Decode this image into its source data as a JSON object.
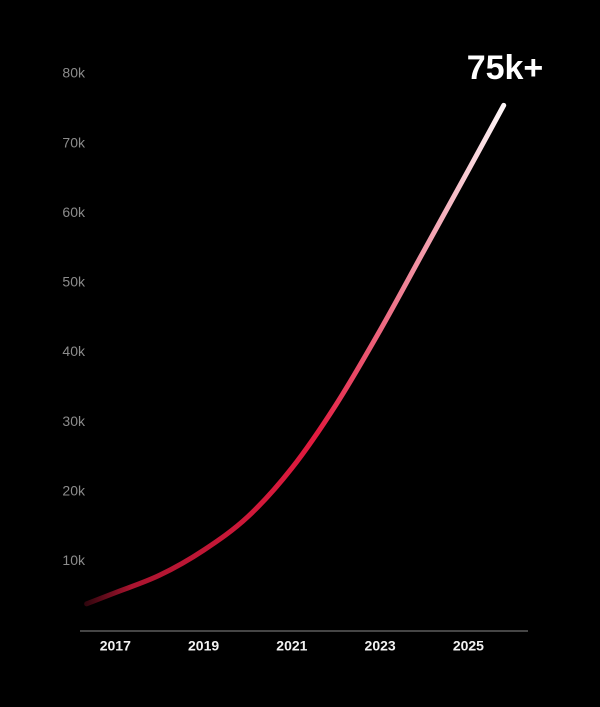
{
  "chart_data": {
    "type": "line",
    "annotation": "75k+",
    "x": [
      2016.35,
      2017,
      2018,
      2019,
      2020,
      2021,
      2022,
      2023,
      2024,
      2025,
      2025.8
    ],
    "series": [
      {
        "color": "#e31b3f",
        "values": [
          3900,
          5500,
          8000,
          11600,
          16400,
          23400,
          32500,
          43200,
          54700,
          66200,
          75500
        ]
      }
    ],
    "xlim": [
      2016.2,
      2026.35
    ],
    "xticks": [
      2017,
      2019,
      2021,
      2023,
      2025
    ],
    "ylim": [
      0,
      80000
    ],
    "yticks": [
      {
        "value": 10000,
        "label": "10k"
      },
      {
        "value": 20000,
        "label": "20k"
      },
      {
        "value": 30000,
        "label": "30k"
      },
      {
        "value": 40000,
        "label": "40k"
      },
      {
        "value": 50000,
        "label": "50k"
      },
      {
        "value": 60000,
        "label": "60k"
      },
      {
        "value": 70000,
        "label": "70k"
      },
      {
        "value": 80000,
        "label": "80k"
      }
    ]
  }
}
